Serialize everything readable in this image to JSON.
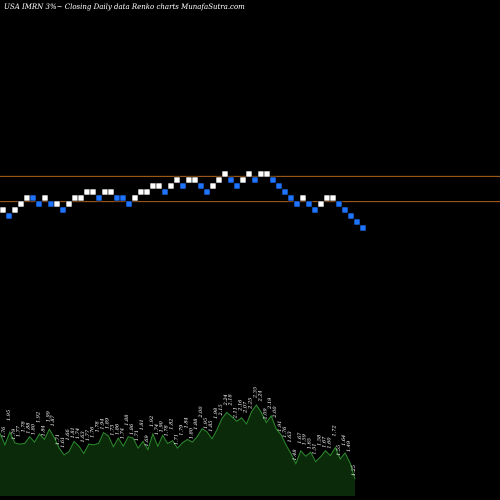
{
  "header": {
    "title": "USA IMRN  3%~  Closing Daily data  Renko  charts MunafaSutra.com"
  },
  "colors": {
    "background": "#000000",
    "up_brick": "#ffffff",
    "down_brick": "#1e74ff",
    "brick_border": "#000000",
    "level_line": "#b0631a",
    "volume_fill": "#0a2a0a",
    "volume_line": "#2d8a2d",
    "label": "#ffffff"
  },
  "chart_data": [
    {
      "type": "renko",
      "title": "USA IMRN  3%~  Closing Daily data  Renko  charts MunafaSutra.com",
      "brick_size_pct": 3,
      "levels": [
        0,
        -1,
        0,
        1,
        2,
        2,
        1,
        2,
        1,
        1,
        0,
        1,
        2,
        2,
        3,
        3,
        2,
        3,
        3,
        2,
        2,
        1,
        2,
        3,
        3,
        4,
        4,
        3,
        4,
        5,
        4,
        5,
        5,
        4,
        3,
        4,
        5,
        6,
        5,
        4,
        5,
        6,
        5,
        6,
        6,
        5,
        4,
        3,
        2,
        1,
        2,
        1,
        0,
        1,
        2,
        2,
        1,
        0,
        -1,
        -2,
        -3
      ],
      "directions": [
        "up",
        "down",
        "up",
        "up",
        "up",
        "down",
        "down",
        "up",
        "down",
        "up",
        "down",
        "up",
        "up",
        "up",
        "up",
        "up",
        "down",
        "up",
        "up",
        "down",
        "down",
        "down",
        "up",
        "up",
        "up",
        "up",
        "up",
        "down",
        "up",
        "up",
        "down",
        "up",
        "up",
        "down",
        "down",
        "up",
        "up",
        "up",
        "down",
        "down",
        "up",
        "up",
        "down",
        "up",
        "up",
        "down",
        "down",
        "down",
        "down",
        "down",
        "up",
        "down",
        "down",
        "up",
        "up",
        "up",
        "down",
        "down",
        "down",
        "down",
        "down"
      ],
      "reference_levels": [
        5.1,
        0.9
      ]
    },
    {
      "type": "bar",
      "series": [
        {
          "values": [
            1.93,
            1.76,
            1.95,
            1.79,
            1.77,
            1.78,
            1.88,
            1.8,
            1.92,
            1.84,
            1.99,
            1.87,
            1.71,
            1.61,
            1.66,
            1.81,
            1.74,
            1.63,
            1.77,
            1.76,
            1.78,
            1.94,
            1.89,
            1.73,
            1.86,
            1.74,
            1.88,
            1.86,
            1.71,
            1.81,
            1.69,
            1.92,
            1.74,
            1.9,
            1.78,
            1.82,
            1.71,
            1.79,
            1.84,
            1.8,
            1.88,
            2.0,
            1.95,
            1.85,
            1.98,
            2.15,
            2.24,
            2.18,
            2.11,
            2.16,
            2.07,
            2.25,
            2.35,
            2.24,
            2.09,
            2.19,
            2.0,
            1.91,
            1.76,
            1.63,
            1.48,
            1.67,
            1.59,
            1.65,
            1.51,
            1.58,
            1.67,
            1.6,
            1.72,
            1.55,
            1.64,
            1.49,
            1.25
          ]
        }
      ]
    }
  ]
}
